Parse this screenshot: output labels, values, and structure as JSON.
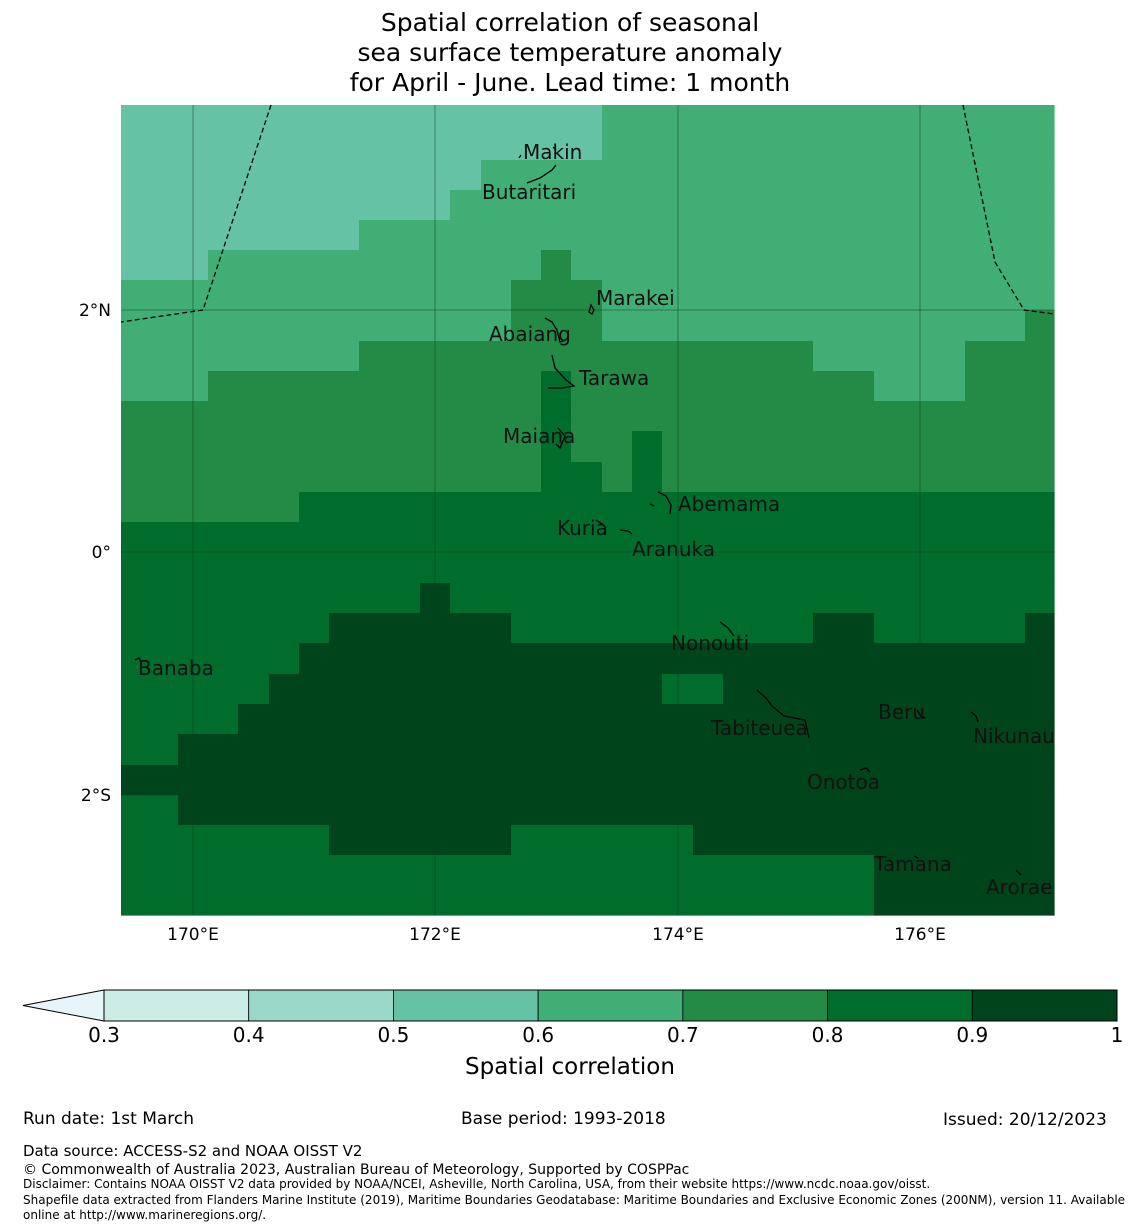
{
  "title": {
    "line1": "Spatial correlation of seasonal",
    "line2": "sea surface temperature anomaly",
    "line3": "for April - June. Lead time: 1 month"
  },
  "map": {
    "lat_labels": [
      "2°N",
      "0°",
      "2°S"
    ],
    "lon_labels": [
      "170°E",
      "172°E",
      "174°E",
      "176°E"
    ],
    "places": [
      {
        "name": "Makin"
      },
      {
        "name": "Butaritari"
      },
      {
        "name": "Marakei"
      },
      {
        "name": "Abaiang"
      },
      {
        "name": "Tarawa"
      },
      {
        "name": "Maiana"
      },
      {
        "name": "Abemama"
      },
      {
        "name": "Kuria"
      },
      {
        "name": "Aranuka"
      },
      {
        "name": "Nonouti"
      },
      {
        "name": "Banaba"
      },
      {
        "name": "Tabiteuea"
      },
      {
        "name": "Beru"
      },
      {
        "name": "Nikunau"
      },
      {
        "name": "Onotoa"
      },
      {
        "name": "Tamana"
      },
      {
        "name": "Arorae"
      }
    ]
  },
  "colorbar": {
    "label": "Spatial correlation",
    "ticks": [
      "0.3",
      "0.4",
      "0.5",
      "0.6",
      "0.7",
      "0.8",
      "0.9",
      "1"
    ],
    "colors": [
      "#e5f5f9",
      "#ccece6",
      "#99d8c9",
      "#66c2a4",
      "#41ae76",
      "#238b45",
      "#006d2c",
      "#00441b"
    ]
  },
  "meta": {
    "run_date": "Run date: 1st March",
    "base_period": "Base period: 1993-2018",
    "issued": "Issued: 20/12/2023",
    "data_source": "Data source: ACCESS-S2 and NOAA OISST V2",
    "copyright": "© Commonwealth of Australia 2023, Australian Bureau of Meteorology, Supported by COSPPac",
    "disclaimer": "Disclaimer: Contains NOAA OISST V2 data provided by NOAA/NCEI, Asheville, North Carolina, USA, from their website https://www.ncdc.noaa.gov/oisst.",
    "shapefile_1": "Shapefile data extracted from Flanders Marine Institute (2019), Maritime Boundaries Geodatabase: Maritime Boundaries and Exclusive Economic Zones (200NM), version 11. Available",
    "shapefile_2": "online at http://www.marineregions.org/."
  }
}
